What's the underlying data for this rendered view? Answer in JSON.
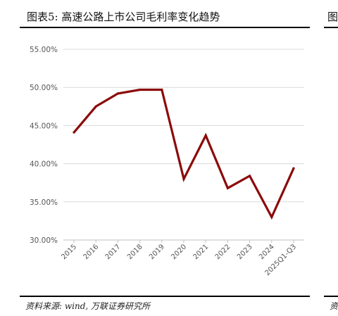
{
  "header": {
    "title": "图表5:  高速公路上市公司毛利率变化趋势",
    "neighbor_title_fragment": "图"
  },
  "footer": {
    "source": "资料来源: wind, 万联证券研究所",
    "neighbor_source_fragment": "资"
  },
  "colors": {
    "line": "#8B0A0A",
    "rule": "#000000",
    "grid": "#D9D9D9",
    "tick_text": "#555555"
  },
  "chart_data": {
    "type": "line",
    "title": "",
    "xlabel": "",
    "ylabel": "",
    "categories": [
      "2015",
      "2016",
      "2017",
      "2018",
      "2019",
      "2020",
      "2021",
      "2022",
      "2023",
      "2024",
      "2025Q1-Q3"
    ],
    "series": [
      {
        "values": [
          44.1,
          47.5,
          49.2,
          49.7,
          49.7,
          38.0,
          43.7,
          36.8,
          38.4,
          33.0,
          39.4
        ]
      }
    ],
    "y_ticks": [
      "30.00%",
      "35.00%",
      "40.00%",
      "45.00%",
      "50.00%",
      "55.00%"
    ],
    "ylim": [
      30,
      55
    ],
    "grid": "horizontal",
    "legend": "none"
  }
}
